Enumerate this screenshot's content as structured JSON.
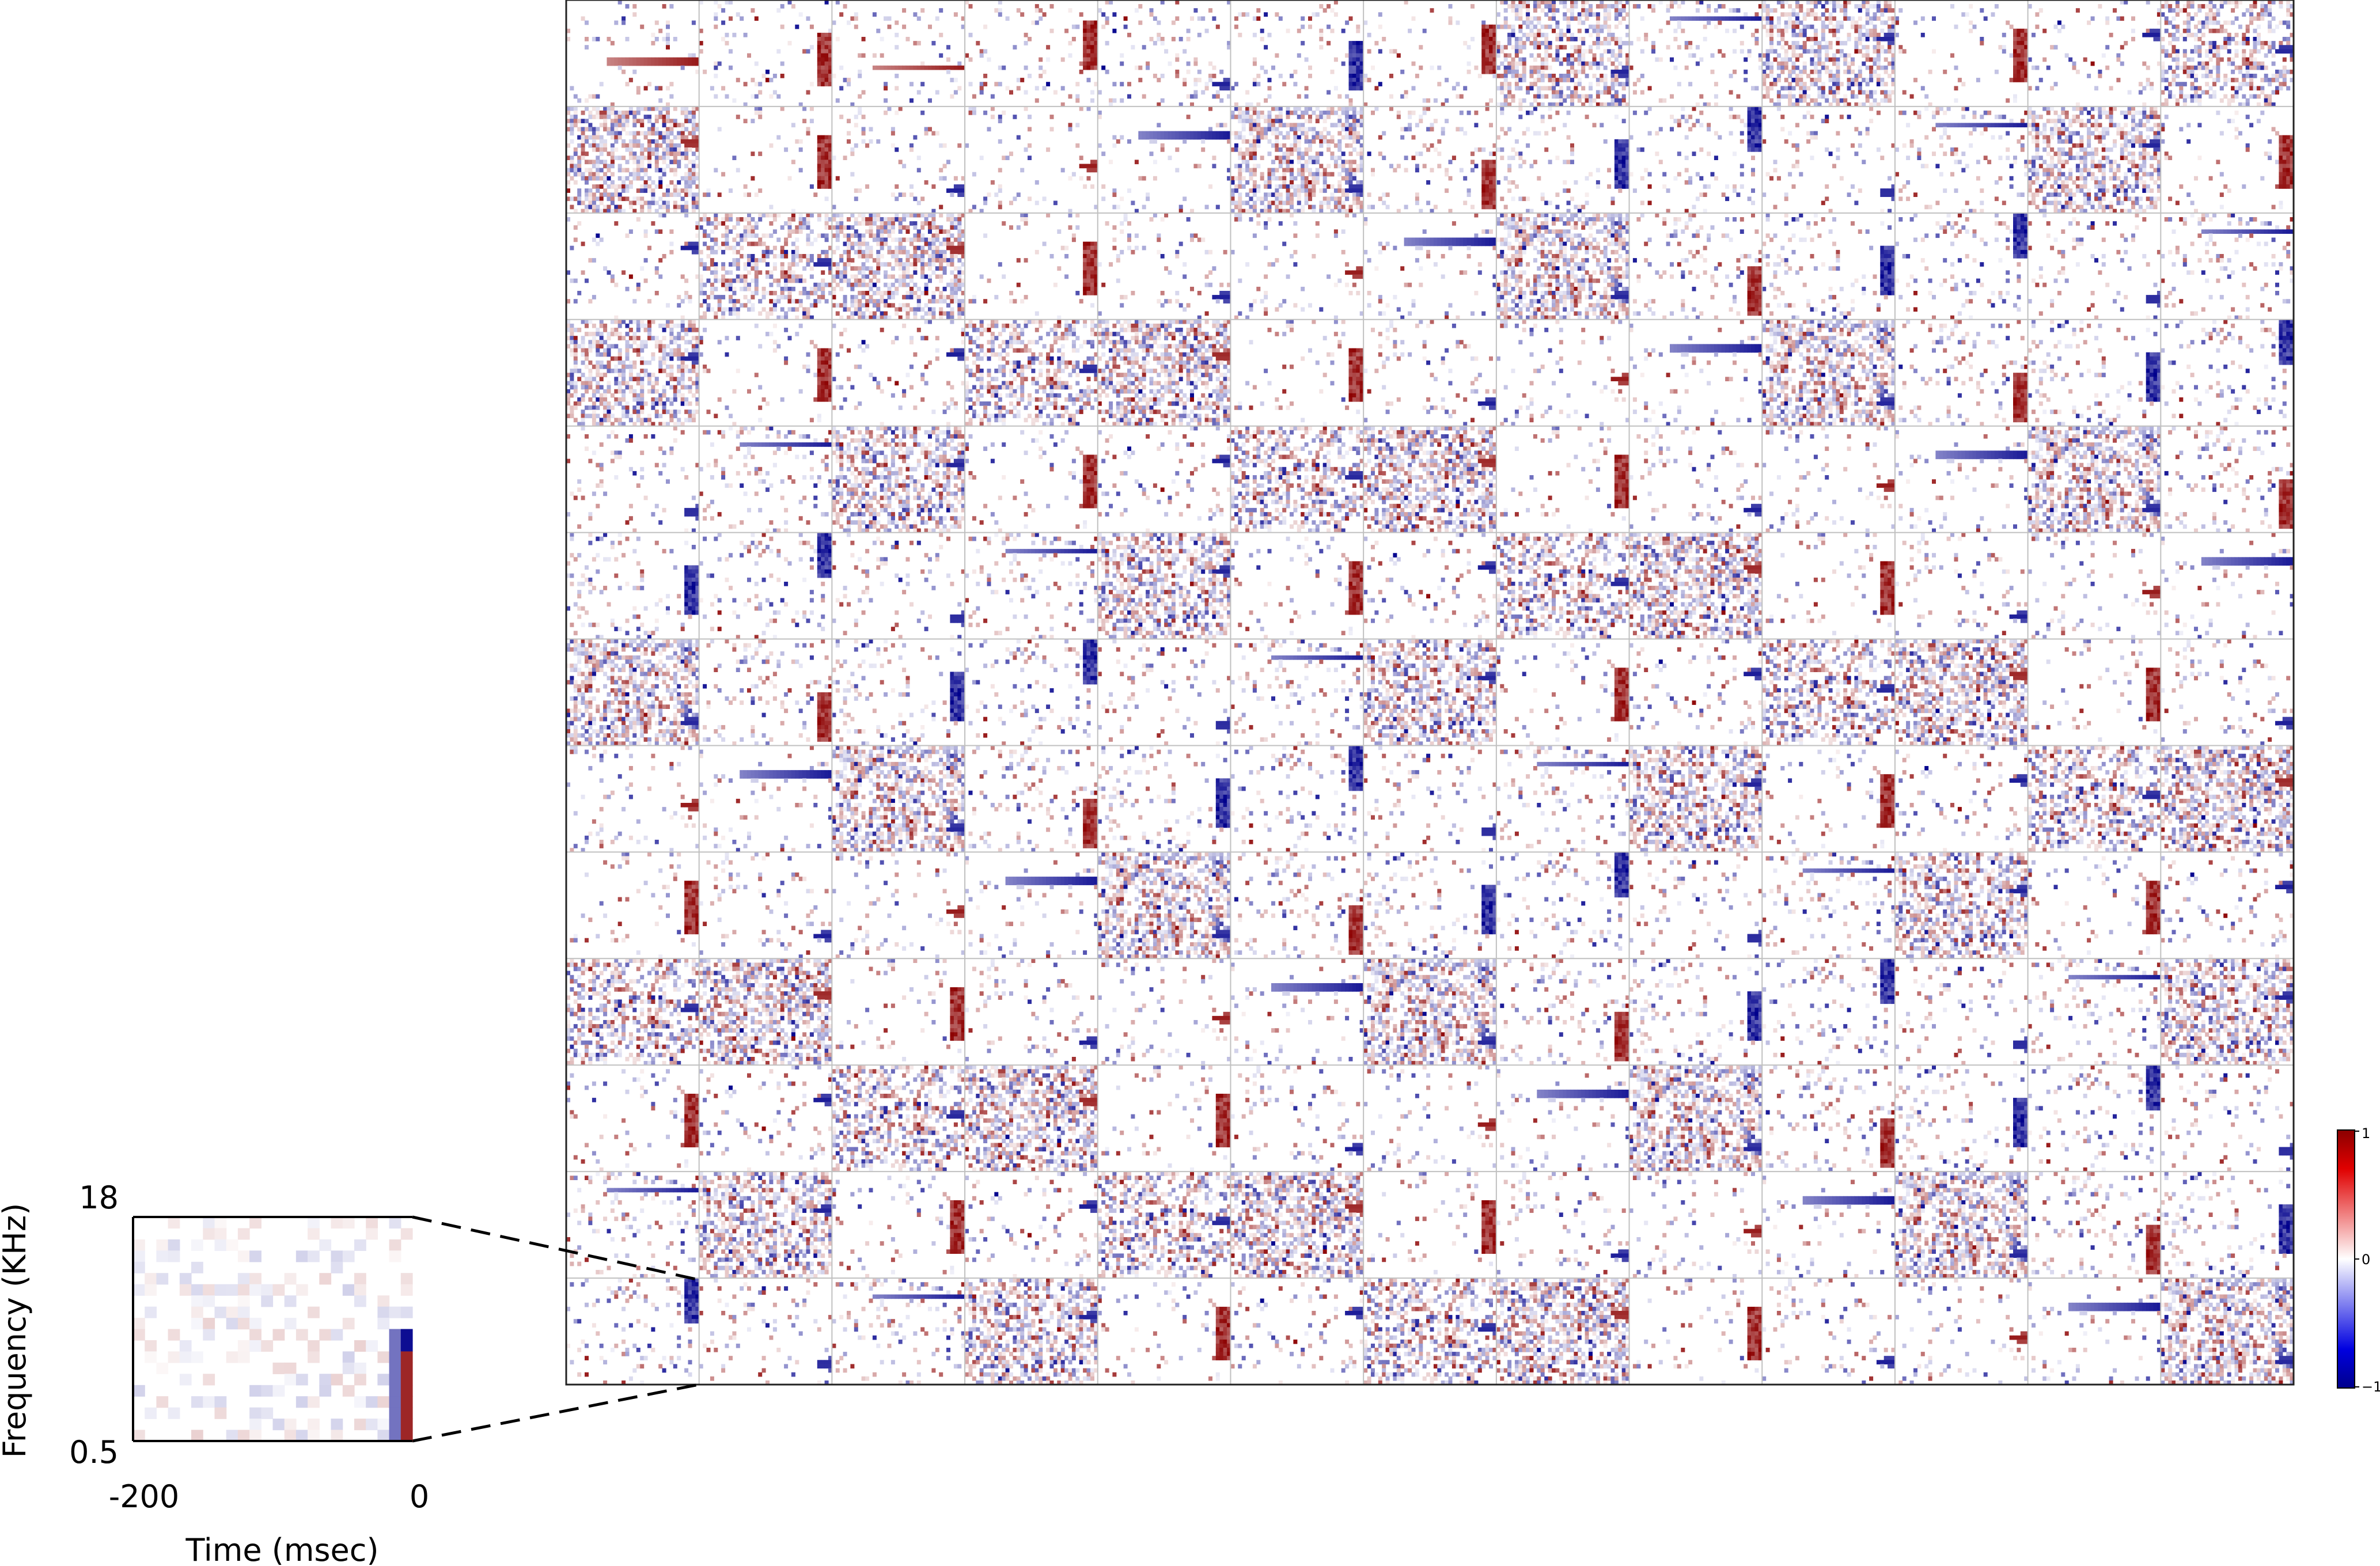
{
  "chart_data": [
    {
      "type": "heatmap",
      "title": "",
      "description_kind": "grid of spectro-temporal receptive fields",
      "grid": {
        "rows": 13,
        "cols": 13
      },
      "colormap": {
        "name": "seismic",
        "low": "#00008b",
        "mid": "#ffffff",
        "high": "#8b0000"
      },
      "colorbar": {
        "ticks": [
          1,
          0,
          -1
        ],
        "tick_labels": [
          "1",
          "0",
          "−1"
        ],
        "vmin": -1,
        "vmax": 1
      },
      "highlighted_cell": {
        "row": 12,
        "col": 0
      }
    },
    {
      "type": "heatmap",
      "title": "",
      "description_kind": "enlarged view of highlighted cell",
      "xlabel": "Time (msec)",
      "ylabel": "Frequency (KHz)",
      "xticks": [
        "-200",
        "0"
      ],
      "yticks": [
        "18",
        "0.5"
      ],
      "xlim": [
        -200,
        0
      ],
      "ylim": [
        0.5,
        18
      ]
    }
  ],
  "colors": {
    "grid_line": "#c0c0c0",
    "frame": "#222222",
    "red": "#e00000",
    "blue": "#0000e0",
    "dark_red": "#8b0000",
    "dark_blue": "#00008b"
  }
}
